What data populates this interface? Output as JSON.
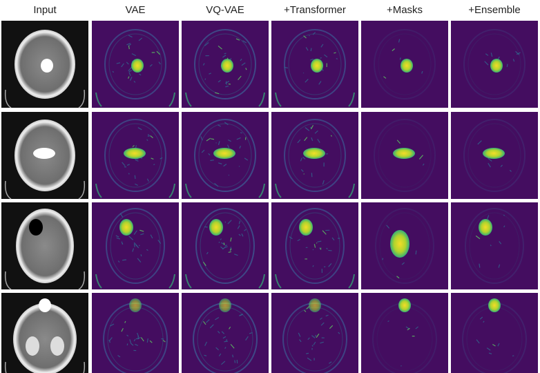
{
  "columns": [
    "Input",
    "VAE",
    "VQ-VAE",
    "+Transformer",
    "+Masks",
    "+Ensemble"
  ]
}
